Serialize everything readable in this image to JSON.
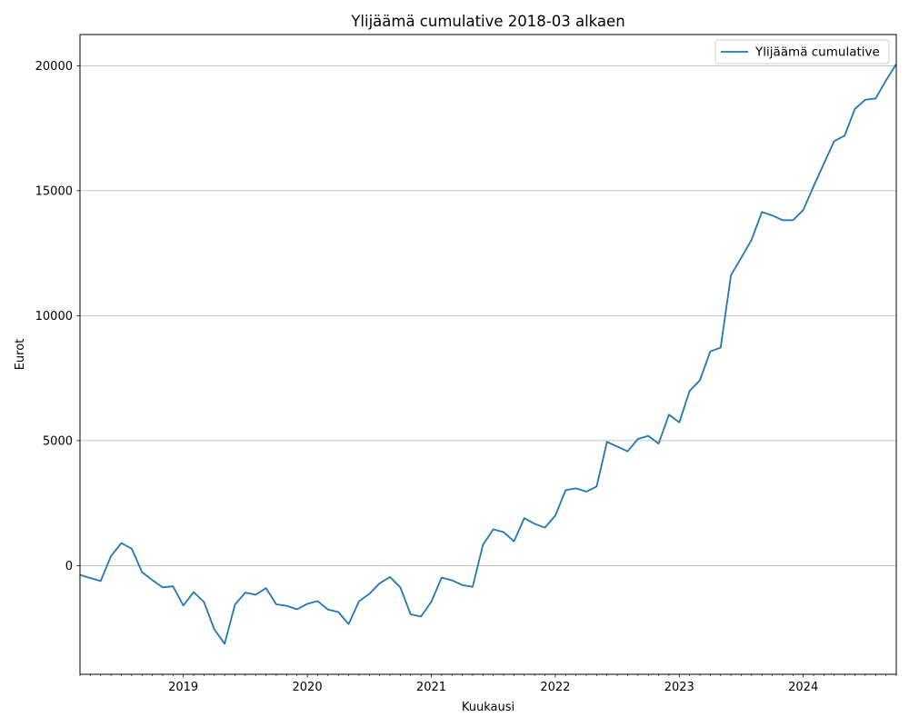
{
  "chart_data": {
    "type": "line",
    "title": "Ylijäämä cumulative 2018-03 alkaen",
    "xlabel": "Kuukausi",
    "ylabel": "Eurot",
    "x_tick_labels": [
      "2019",
      "2020",
      "2021",
      "2022",
      "2023",
      "2024"
    ],
    "y_ticks": [
      0,
      5000,
      10000,
      15000,
      20000
    ],
    "y_tick_labels": [
      "0",
      "5000",
      "10000",
      "15000",
      "20000"
    ],
    "xlim": [
      "2018-03",
      "2024-10"
    ],
    "ylim": [
      -4350,
      21250
    ],
    "grid": "horizontal",
    "legend": "upper right",
    "line_color": "#1f77b4",
    "series": [
      {
        "name": "Ylijäämä cumulative",
        "x": [
          "2018-03",
          "2018-04",
          "2018-05",
          "2018-06",
          "2018-07",
          "2018-08",
          "2018-09",
          "2018-10",
          "2018-11",
          "2018-12",
          "2019-01",
          "2019-02",
          "2019-03",
          "2019-04",
          "2019-05",
          "2019-06",
          "2019-07",
          "2019-08",
          "2019-09",
          "2019-10",
          "2019-11",
          "2019-12",
          "2020-01",
          "2020-02",
          "2020-03",
          "2020-04",
          "2020-05",
          "2020-06",
          "2020-07",
          "2020-08",
          "2020-09",
          "2020-10",
          "2020-11",
          "2020-12",
          "2021-01",
          "2021-02",
          "2021-03",
          "2021-04",
          "2021-05",
          "2021-06",
          "2021-07",
          "2021-08",
          "2021-09",
          "2021-10",
          "2021-11",
          "2021-12",
          "2022-01",
          "2022-02",
          "2022-03",
          "2022-04",
          "2022-05",
          "2022-06",
          "2022-07",
          "2022-08",
          "2022-09",
          "2022-10",
          "2022-11",
          "2022-12",
          "2023-01",
          "2023-02",
          "2023-03",
          "2023-04",
          "2023-05",
          "2023-06",
          "2023-07",
          "2023-08",
          "2023-09",
          "2023-10",
          "2023-11",
          "2023-12",
          "2024-01",
          "2024-02",
          "2024-03",
          "2024-04",
          "2024-05",
          "2024-06",
          "2024-07",
          "2024-08",
          "2024-09",
          "2024-10"
        ],
        "values": [
          -370,
          -500,
          -620,
          380,
          900,
          680,
          -260,
          -580,
          -870,
          -830,
          -1600,
          -1060,
          -1460,
          -2550,
          -3130,
          -1560,
          -1080,
          -1170,
          -900,
          -1550,
          -1610,
          -1750,
          -1530,
          -1420,
          -1760,
          -1860,
          -2340,
          -1430,
          -1130,
          -710,
          -460,
          -870,
          -1950,
          -2040,
          -1450,
          -480,
          -590,
          -780,
          -850,
          830,
          1450,
          1340,
          970,
          1900,
          1670,
          1520,
          2000,
          3020,
          3090,
          2960,
          3160,
          4950,
          4760,
          4570,
          5070,
          5190,
          4880,
          6040,
          5730,
          6990,
          7420,
          8570,
          8720,
          11620,
          12320,
          13040,
          14150,
          14010,
          13820,
          13820,
          14230,
          15180,
          16090,
          16990,
          17200,
          18280,
          18640,
          18690,
          19410,
          20070
        ]
      }
    ]
  }
}
